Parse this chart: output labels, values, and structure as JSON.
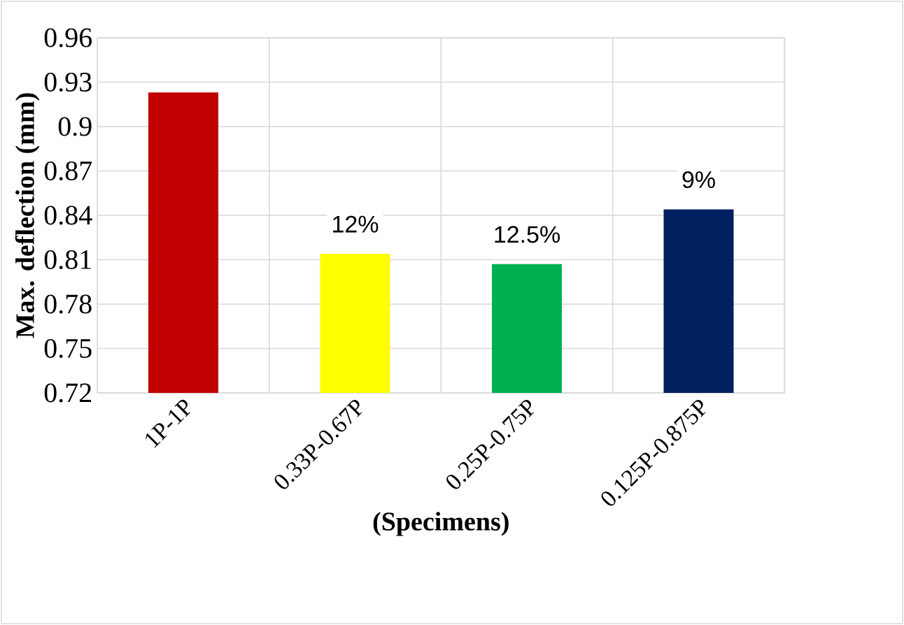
{
  "chart_data": {
    "type": "bar",
    "xlabel": "(Specimens)",
    "ylabel": "Max. deflection (mm)",
    "categories": [
      "1P-1P",
      "0.33P-0.67P",
      "0.25P-0.75P",
      "0.125P-0.875P"
    ],
    "values": [
      0.923,
      0.814,
      0.807,
      0.844
    ],
    "colors": [
      "#c00000",
      "#ffff00",
      "#00b050",
      "#002060"
    ],
    "ylim": [
      0.72,
      0.96
    ],
    "yticks": [
      0.72,
      0.75,
      0.78,
      0.81,
      0.84,
      0.87,
      0.9,
      0.93,
      0.96
    ],
    "grid": true,
    "annotations": [
      {
        "text": "12%",
        "x": "0.33P-0.67P",
        "y": 0.814
      },
      {
        "text": "12.5%",
        "x": "0.25P-0.75P",
        "y": 0.807
      },
      {
        "text": "9%",
        "x": "0.125P-0.875P",
        "y": 0.844
      }
    ]
  }
}
